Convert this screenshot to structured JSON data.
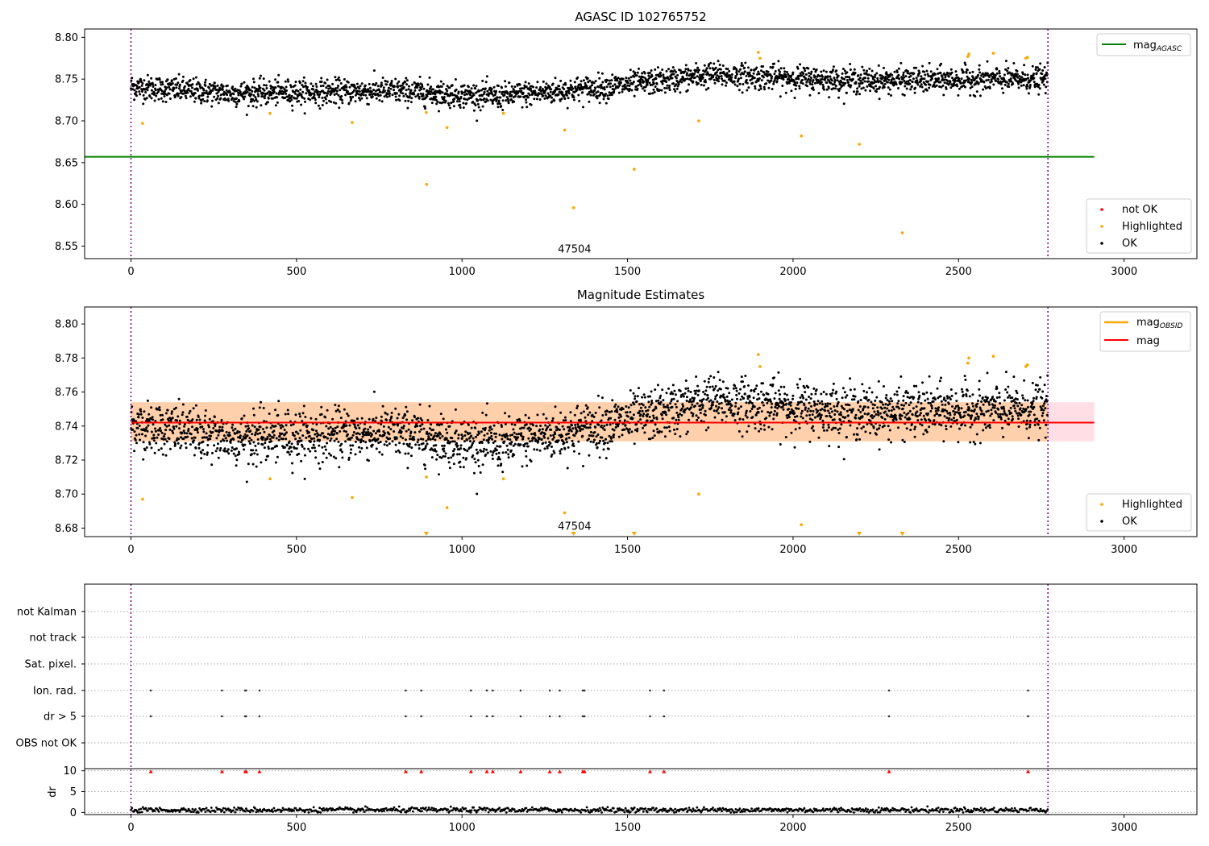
{
  "chart_data": [
    {
      "type": "scatter",
      "title": "AGASC ID 102765752",
      "xlim": [
        -140,
        3220
      ],
      "ylim": [
        8.535,
        8.81
      ],
      "xticks": [
        0,
        500,
        1000,
        1500,
        2000,
        2500,
        3000
      ],
      "yticks": [
        8.55,
        8.6,
        8.65,
        8.7,
        8.75,
        8.8
      ],
      "ytick_labels": [
        "8.55",
        "8.60",
        "8.65",
        "8.70",
        "8.75",
        "8.80"
      ],
      "grid": false,
      "mag_agasc": 8.657,
      "mag_line_extent": [
        -140,
        2910
      ],
      "vlines": [
        0,
        2770
      ],
      "annotation": {
        "text": "47504",
        "x": 1340,
        "y": 8.542
      },
      "ok_band": {
        "n": 2770,
        "trend": [
          [
            0,
            8.741
          ],
          [
            300,
            8.733
          ],
          [
            800,
            8.736
          ],
          [
            1100,
            8.729
          ],
          [
            1500,
            8.743
          ],
          [
            1750,
            8.755
          ],
          [
            2200,
            8.748
          ],
          [
            2770,
            8.75
          ]
        ],
        "spread": 0.0075
      },
      "highlighted": [
        [
          35,
          8.697
        ],
        [
          420,
          8.709
        ],
        [
          668,
          8.698
        ],
        [
          892,
          8.71
        ],
        [
          893,
          8.624
        ],
        [
          955,
          8.692
        ],
        [
          1125,
          8.709
        ],
        [
          1310,
          8.689
        ],
        [
          1337,
          8.596
        ],
        [
          1520,
          8.642
        ],
        [
          1715,
          8.7
        ],
        [
          1895,
          8.782
        ],
        [
          1900,
          8.775
        ],
        [
          2025,
          8.682
        ],
        [
          2200,
          8.672
        ],
        [
          2330,
          8.566
        ],
        [
          2528,
          8.777
        ],
        [
          2531,
          8.78
        ],
        [
          2605,
          8.781
        ],
        [
          2703,
          8.775
        ],
        [
          2708,
          8.776
        ]
      ],
      "legend_top": {
        "position": "top-right",
        "entries": [
          {
            "label": "mag",
            "sub": "AGASC",
            "color": "#008000"
          }
        ]
      },
      "legend_bottom": {
        "position": "lower-right",
        "entries": [
          {
            "label": "not OK",
            "color": "#ff0000"
          },
          {
            "label": "Highlighted",
            "color": "#ffa500"
          },
          {
            "label": "OK",
            "color": "#000000"
          }
        ]
      }
    },
    {
      "type": "scatter",
      "title": "Magnitude Estimates",
      "xlim": [
        -140,
        3220
      ],
      "ylim": [
        8.675,
        8.81
      ],
      "xticks": [
        0,
        500,
        1000,
        1500,
        2000,
        2500,
        3000
      ],
      "yticks": [
        8.68,
        8.7,
        8.72,
        8.74,
        8.76,
        8.78,
        8.8
      ],
      "ytick_labels": [
        "8.68",
        "8.70",
        "8.72",
        "8.74",
        "8.76",
        "8.78",
        "8.80"
      ],
      "grid": false,
      "mag": 8.742,
      "mag_obsid": 8.742,
      "band_obsid": [
        8.731,
        8.754
      ],
      "band_mag": [
        8.731,
        8.754
      ],
      "band_mag_extent": [
        0,
        2910
      ],
      "band_obsid_extent": [
        0,
        2770
      ],
      "vlines": [
        0,
        2770
      ],
      "annotation": {
        "text": "47504",
        "x": 1340,
        "y": 8.679
      },
      "highlighted_clipped_x": [
        892,
        1337,
        1520,
        2200,
        2330
      ],
      "legend_top": {
        "position": "top-right",
        "entries": [
          {
            "label": "mag",
            "sub": "OBSID",
            "color": "#ffa500"
          },
          {
            "label": "mag",
            "sub": "",
            "color": "#ff0000"
          }
        ]
      },
      "legend_bottom": {
        "position": "lower-right",
        "entries": [
          {
            "label": "Highlighted",
            "color": "#ffa500"
          },
          {
            "label": "OK",
            "color": "#000000"
          }
        ]
      }
    },
    {
      "type": "scatter",
      "title": "",
      "xlim": [
        -140,
        3220
      ],
      "xticks": [
        0,
        500,
        1000,
        1500,
        2000,
        2500,
        3000
      ],
      "flag_rows": [
        "not Kalman",
        "not track",
        "Sat. pixel.",
        "Ion. rad.",
        "dr > 5",
        "OBS not OK"
      ],
      "flag_events_x": [
        60,
        275,
        345,
        348,
        388,
        830,
        877,
        1027,
        1075,
        1093,
        1177,
        1265,
        1295,
        1365,
        1370,
        1568,
        1610,
        2290,
        2710
      ],
      "flag_event_rows": [
        "Ion. rad.",
        "dr > 5"
      ],
      "dr_ylim": [
        -0.5,
        10.5
      ],
      "dr_yticks": [
        0,
        5,
        10
      ],
      "dr_ytick_labels": [
        "0",
        "5",
        "10"
      ],
      "dr_ylabel": "dr",
      "dr_clipped_x": [
        60,
        275,
        345,
        348,
        388,
        830,
        877,
        1027,
        1075,
        1093,
        1177,
        1265,
        1295,
        1365,
        1370,
        1568,
        1610,
        2290,
        2710
      ],
      "dr_typical": 0.6,
      "vlines": [
        0,
        2770
      ]
    }
  ]
}
